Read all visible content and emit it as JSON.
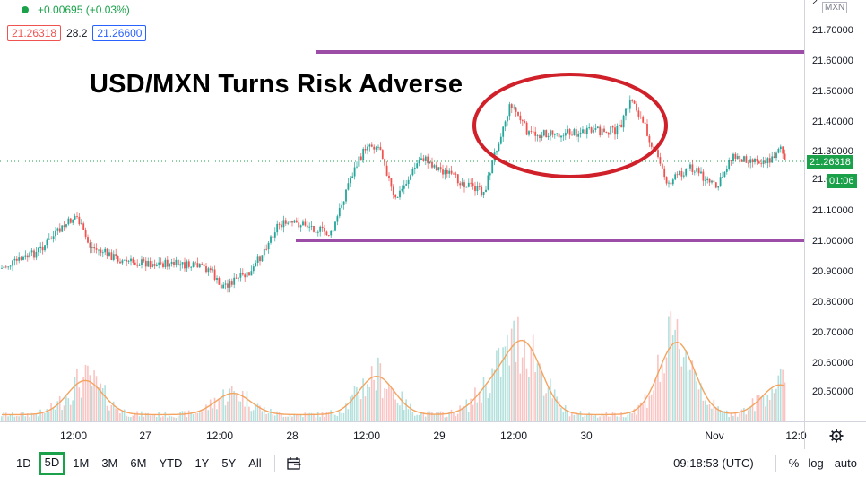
{
  "legend": {
    "change": "+0.00695 (+0.03%)",
    "bid": "21.26318",
    "spread": "28.2",
    "ask": "21.26600"
  },
  "annotation_title": "USD/MXN Turns Risk Adverse",
  "symbol_badge": "MXN",
  "price_axis": {
    "labels": [
      "21.70000",
      "21.60000",
      "21.50000",
      "21.40000",
      "21.30000",
      "21.10000",
      "21.00000",
      "20.90000",
      "20.80000",
      "20.70000",
      "20.60000",
      "20.50000"
    ],
    "current_price": "21.26318",
    "countdown": "01:06",
    "partial_top": "2",
    "partial_label": "21.0"
  },
  "time_axis": {
    "labels": [
      "12:00",
      "27",
      "12:00",
      "28",
      "12:00",
      "29",
      "12:00",
      "30",
      "Nov",
      "12:0"
    ]
  },
  "toolbar": {
    "timeframes": [
      "1D",
      "5D",
      "1M",
      "3M",
      "6M",
      "YTD",
      "1Y",
      "5Y",
      "All"
    ],
    "active": "5D",
    "clock": "09:18:53 (UTC)",
    "percent": "%",
    "log": "log",
    "auto": "auto"
  },
  "colors": {
    "up": "#26a69a",
    "down": "#ef5350",
    "line_annotation": "#9c4da6",
    "ellipse": "#d0202a",
    "active_tf": "#1aa14a",
    "price_green": "#1aa14a"
  }
}
